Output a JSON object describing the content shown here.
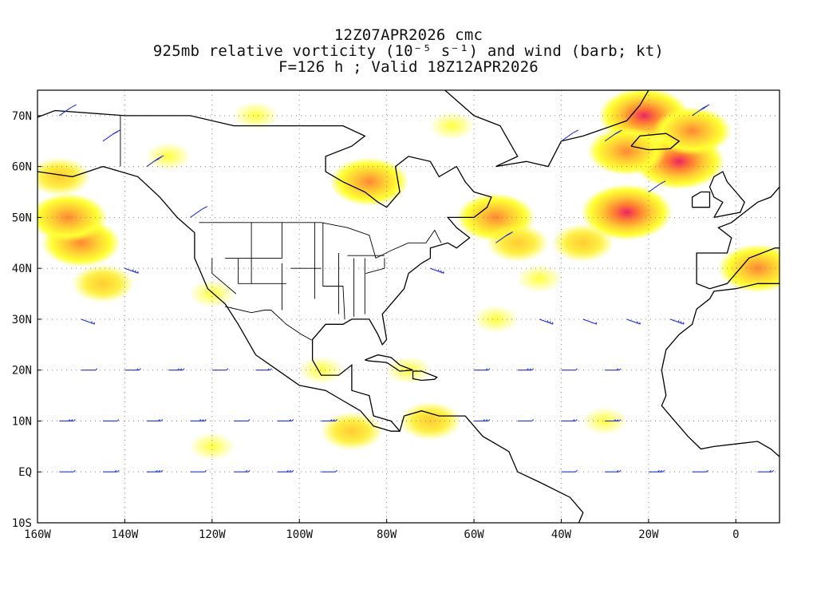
{
  "title": {
    "line1": "12Z07APR2026 cmc",
    "line2": "925mb relative vorticity (10⁻⁵ s⁻¹) and wind (barb; kt)",
    "line3": "F=126 h ; Valid 18Z12APR2026"
  },
  "axes": {
    "lat_labels": [
      "70N",
      "60N",
      "50N",
      "40N",
      "30N",
      "20N",
      "10N",
      "EQ",
      "10S"
    ],
    "lat_values": [
      70,
      60,
      50,
      40,
      30,
      20,
      10,
      0,
      -10
    ],
    "lon_labels": [
      "160W",
      "140W",
      "120W",
      "100W",
      "80W",
      "60W",
      "40W",
      "20W",
      "0"
    ],
    "lon_values": [
      -160,
      -140,
      -120,
      -100,
      -80,
      -60,
      -40,
      -20,
      0
    ],
    "lon_range": [
      -160,
      10
    ],
    "lat_range": [
      -10,
      75
    ],
    "grid": "dotted"
  },
  "colors": {
    "vort_low": "#ffff33",
    "vort_mid": "#ffcc33",
    "vort_high": "#ff9933",
    "vort_max": "#ee2266",
    "barb": "#2233cc",
    "coast": "#000000",
    "grid": "#888888"
  },
  "vorticity_blobs": [
    {
      "lon": -150,
      "lat": 45,
      "level": 3
    },
    {
      "lon": -153,
      "lat": 50,
      "level": 3
    },
    {
      "lon": -145,
      "lat": 37,
      "level": 2
    },
    {
      "lon": -155,
      "lat": 58,
      "level": 2
    },
    {
      "lon": -84,
      "lat": 57,
      "level": 3
    },
    {
      "lon": -55,
      "lat": 50,
      "level": 3
    },
    {
      "lon": -50,
      "lat": 45,
      "level": 2
    },
    {
      "lon": -25,
      "lat": 51,
      "level": 4
    },
    {
      "lon": -35,
      "lat": 45,
      "level": 2
    },
    {
      "lon": -45,
      "lat": 38,
      "level": 1
    },
    {
      "lon": -55,
      "lat": 30,
      "level": 1
    },
    {
      "lon": -21,
      "lat": 70,
      "level": 4
    },
    {
      "lon": -13,
      "lat": 61,
      "level": 4
    },
    {
      "lon": -10,
      "lat": 67,
      "level": 3
    },
    {
      "lon": -25,
      "lat": 63,
      "level": 3
    },
    {
      "lon": 5,
      "lat": 40,
      "level": 3
    },
    {
      "lon": -70,
      "lat": 10,
      "level": 2
    },
    {
      "lon": -88,
      "lat": 8,
      "level": 2
    },
    {
      "lon": -30,
      "lat": 10,
      "level": 1
    },
    {
      "lon": -110,
      "lat": 70,
      "level": 1
    },
    {
      "lon": -130,
      "lat": 62,
      "level": 1
    },
    {
      "lon": -65,
      "lat": 68,
      "level": 1
    },
    {
      "lon": -120,
      "lat": 35,
      "level": 1
    },
    {
      "lon": -95,
      "lat": 20,
      "level": 1
    },
    {
      "lon": -75,
      "lat": 20,
      "level": 1
    },
    {
      "lon": -120,
      "lat": 5,
      "level": 1
    }
  ],
  "barbs": [
    {
      "lon": -155,
      "lat": 70
    },
    {
      "lon": -145,
      "lat": 65
    },
    {
      "lon": -135,
      "lat": 60
    },
    {
      "lon": -150,
      "lat": 20
    },
    {
      "lon": -140,
      "lat": 20
    },
    {
      "lon": -130,
      "lat": 20
    },
    {
      "lon": -120,
      "lat": 20
    },
    {
      "lon": -110,
      "lat": 20
    },
    {
      "lon": -155,
      "lat": 10
    },
    {
      "lon": -145,
      "lat": 10
    },
    {
      "lon": -135,
      "lat": 10
    },
    {
      "lon": -125,
      "lat": 10
    },
    {
      "lon": -115,
      "lat": 10
    },
    {
      "lon": -105,
      "lat": 10
    },
    {
      "lon": -95,
      "lat": 10
    },
    {
      "lon": -155,
      "lat": 0
    },
    {
      "lon": -145,
      "lat": 0
    },
    {
      "lon": -135,
      "lat": 0
    },
    {
      "lon": -125,
      "lat": 0
    },
    {
      "lon": -115,
      "lat": 0
    },
    {
      "lon": -105,
      "lat": 0
    },
    {
      "lon": -95,
      "lat": 0
    },
    {
      "lon": -60,
      "lat": 20
    },
    {
      "lon": -50,
      "lat": 20
    },
    {
      "lon": -40,
      "lat": 20
    },
    {
      "lon": -30,
      "lat": 20
    },
    {
      "lon": -60,
      "lat": 10
    },
    {
      "lon": -50,
      "lat": 10
    },
    {
      "lon": -40,
      "lat": 10
    },
    {
      "lon": -30,
      "lat": 10
    },
    {
      "lon": -40,
      "lat": 0
    },
    {
      "lon": -30,
      "lat": 0
    },
    {
      "lon": -20,
      "lat": 0
    },
    {
      "lon": -10,
      "lat": 0
    },
    {
      "lon": 5,
      "lat": 0
    },
    {
      "lon": -45,
      "lat": 30
    },
    {
      "lon": -35,
      "lat": 30
    },
    {
      "lon": -25,
      "lat": 30
    },
    {
      "lon": -15,
      "lat": 30
    },
    {
      "lon": -40,
      "lat": 65
    },
    {
      "lon": -30,
      "lat": 65
    },
    {
      "lon": -10,
      "lat": 70
    },
    {
      "lon": -20,
      "lat": 55
    },
    {
      "lon": -55,
      "lat": 45
    },
    {
      "lon": -70,
      "lat": 40
    },
    {
      "lon": -125,
      "lat": 50
    },
    {
      "lon": -150,
      "lat": 30
    },
    {
      "lon": -140,
      "lat": 40
    }
  ]
}
